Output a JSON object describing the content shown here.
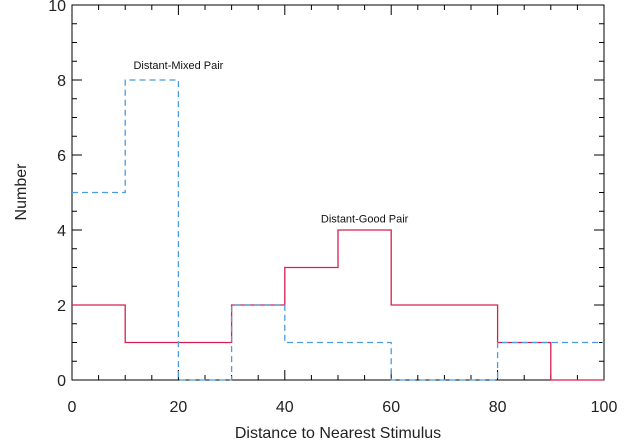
{
  "chart_data": {
    "type": "line",
    "style": "step-histogram",
    "xlabel": "Distance to Nearest Stimulus",
    "ylabel": "Number",
    "xlim": [
      0,
      100
    ],
    "ylim": [
      0,
      10
    ],
    "x_ticks": [
      "0",
      "20",
      "40",
      "60",
      "80",
      "100"
    ],
    "y_ticks": [
      "0",
      "2",
      "4",
      "6",
      "8",
      "10"
    ],
    "bin_edges": [
      0,
      10,
      20,
      30,
      40,
      50,
      60,
      70,
      80,
      90,
      100
    ],
    "grid": false,
    "legend": "none",
    "series": [
      {
        "counts": [
          2,
          1,
          1,
          2,
          3,
          4,
          2,
          2,
          1,
          0
        ],
        "color": "#d6204e",
        "dash": "solid"
      },
      {
        "counts": [
          5,
          8,
          0,
          2,
          1,
          1,
          0,
          0,
          1,
          1
        ],
        "color": "#4a9be0",
        "dash": "dashed"
      }
    ],
    "annotations": [
      {
        "text": "Distant-Mixed Pair",
        "x": 20,
        "y": 8.3
      },
      {
        "text": "Distant-Good Pair",
        "x": 55,
        "y": 4.2
      }
    ]
  }
}
